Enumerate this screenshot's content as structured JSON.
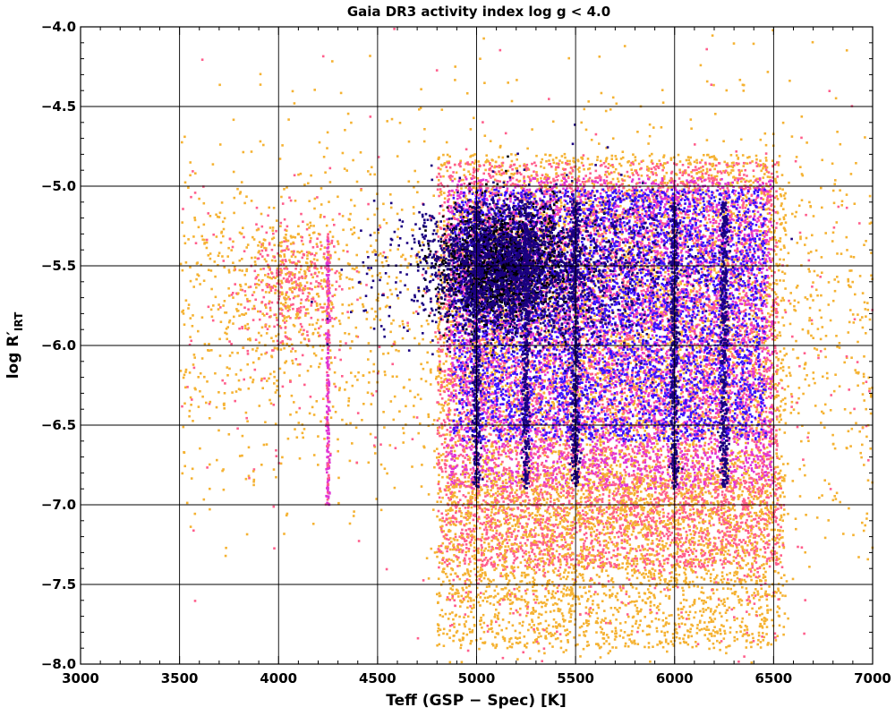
{
  "chart_data": {
    "type": "scatter",
    "title": "Gaia DR3 activity index log g < 4.0",
    "xlabel": "Teff (GSP − Spec) [K]",
    "ylabel_main": "log R′",
    "ylabel_sub": "IRT",
    "xlim": [
      3000,
      7000
    ],
    "ylim": [
      -8.0,
      -4.0
    ],
    "x_ticks": [
      3000,
      3500,
      4000,
      4500,
      5000,
      5500,
      6000,
      6500,
      7000
    ],
    "x_tick_labels": [
      "3000",
      "3500",
      "4000",
      "4500",
      "5000",
      "5500",
      "6000",
      "6500",
      "7000"
    ],
    "y_ticks": [
      -4.0,
      -4.5,
      -5.0,
      -5.5,
      -6.0,
      -6.5,
      -7.0,
      -7.5,
      -8.0
    ],
    "y_tick_labels": [
      "−4.0",
      "−4.5",
      "−5.0",
      "−5.5",
      "−6.0",
      "−6.5",
      "−7.0",
      "−7.5",
      "−8.0"
    ],
    "grid": true,
    "density_colors": [
      "#f5b232",
      "#ff5e8c",
      "#e035d6",
      "#3a12ff",
      "#1a0080",
      "#000000"
    ],
    "regions": [
      {
        "name": "dense main locus",
        "x": [
          4780,
          6520
        ],
        "y": [
          -7.0,
          -5.0
        ],
        "peak": [
          5120,
          -5.5
        ]
      },
      {
        "name": "sparse cool group",
        "x": [
          3500,
          4750
        ],
        "y": [
          -7.6,
          -4.9
        ],
        "peak": [
          4050,
          -5.6
        ]
      },
      {
        "name": "vertical streak",
        "x": [
          4250,
          4250
        ],
        "y": [
          -7.0,
          -5.2
        ]
      }
    ]
  }
}
